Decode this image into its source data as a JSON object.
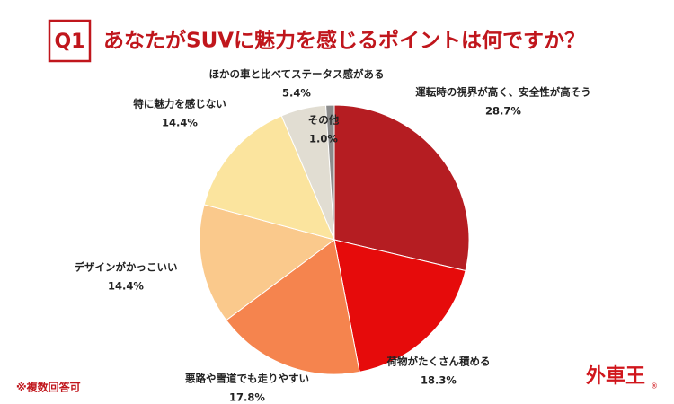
{
  "chart_data": {
    "type": "pie",
    "badge": "Q1",
    "title": "あなたがSUVに魅力を感じるポイントは何ですか？",
    "categories": [
      "運転時の視界が高く、安全性が高そう",
      "荷物がたくさん積める",
      "悪路や雪道でも走りやすい",
      "デザインがかっこいい",
      "特に魅力を感じない",
      "ほかの車と比べてステータス感がある",
      "その他"
    ],
    "values": [
      28.7,
      18.3,
      17.8,
      14.4,
      14.4,
      5.4,
      1.0
    ],
    "value_labels": [
      "28.7%",
      "18.3%",
      "17.8%",
      "14.4%",
      "14.4%",
      "5.4%",
      "1.0%"
    ],
    "colors": [
      "#b51d22",
      "#e60b0b",
      "#f5844e",
      "#fac98c",
      "#fbe49e",
      "#e1ddd2",
      "#8c8c8c"
    ],
    "note": "※複数回答可"
  },
  "logo": {
    "text": "外車王",
    "mark": "®"
  }
}
